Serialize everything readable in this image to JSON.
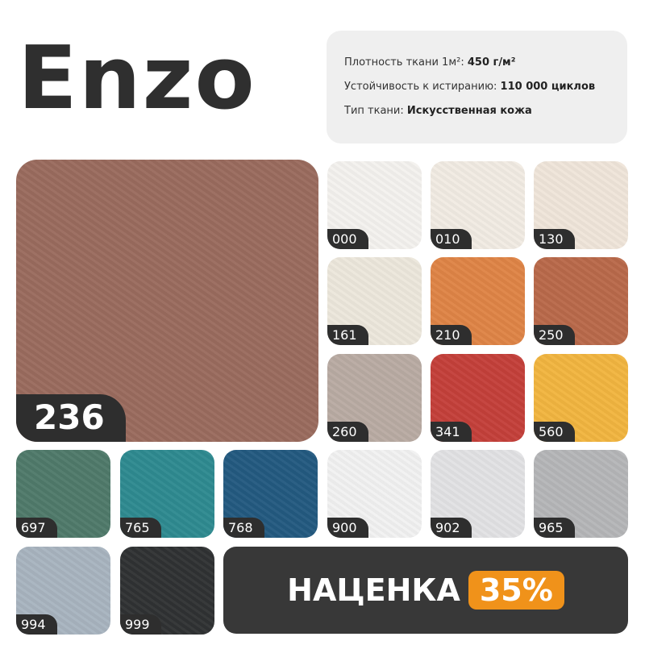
{
  "title": "Enzo",
  "specs": [
    {
      "label": "Плотность ткани 1м²: ",
      "value": "450 г/м²"
    },
    {
      "label": "Устойчивость к истиранию: ",
      "value": "110 000 циклов"
    },
    {
      "label": "Тип ткани: ",
      "value": "Искусственная кожа"
    }
  ],
  "featured": {
    "code": "236",
    "color": "#9a6b5e"
  },
  "swatches": [
    {
      "code": "000",
      "color": "#f4f2ee"
    },
    {
      "code": "010",
      "color": "#f1ebe3"
    },
    {
      "code": "130",
      "color": "#efe5da"
    },
    {
      "code": "161",
      "color": "#ece7dc"
    },
    {
      "code": "210",
      "color": "#df8446"
    },
    {
      "code": "250",
      "color": "#b9694a"
    },
    {
      "code": "260",
      "color": "#b9aba3"
    },
    {
      "code": "341",
      "color": "#c4403a"
    },
    {
      "code": "560",
      "color": "#f2b540"
    },
    {
      "code": "697",
      "color": "#4f7a6a"
    },
    {
      "code": "765",
      "color": "#2e8a90"
    },
    {
      "code": "768",
      "color": "#235a80"
    },
    {
      "code": "900",
      "color": "#f1f1f1"
    },
    {
      "code": "902",
      "color": "#e2e2e4"
    },
    {
      "code": "965",
      "color": "#b5b6b8"
    },
    {
      "code": "994",
      "color": "#a8b4bf"
    },
    {
      "code": "999",
      "color": "#303233"
    }
  ],
  "promo": {
    "label": "НАЦЕНКА",
    "percent": "35%",
    "accent": "#f0921a"
  }
}
